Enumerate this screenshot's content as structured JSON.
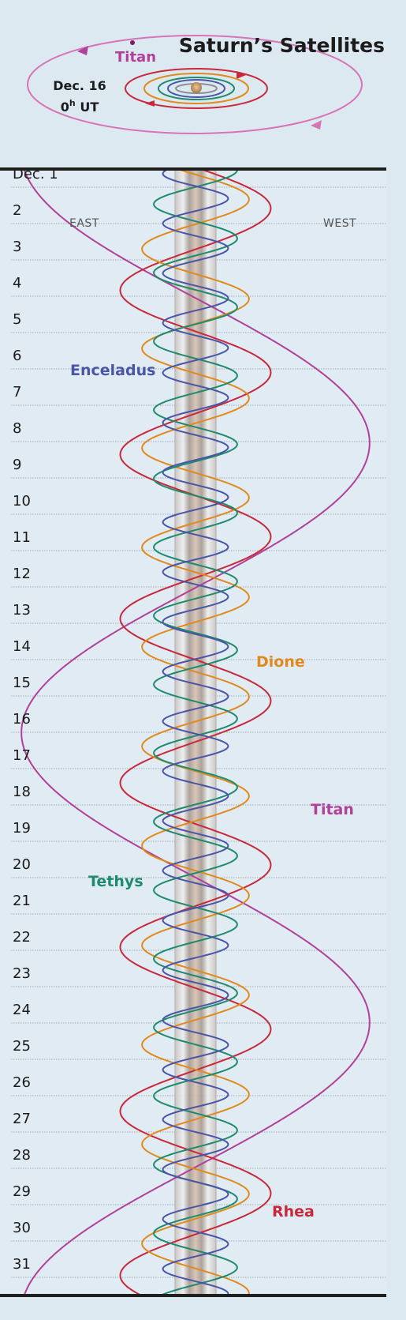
{
  "header": {
    "title": "Saturn’s Satellites",
    "orbit_label": "Titan",
    "date_line1": "Dec. 16",
    "date_line2_main": "0",
    "date_line2_sup": "h",
    "date_line2_rest": " UT"
  },
  "chart_data": {
    "type": "line",
    "x_axis_labels": {
      "east": "EAST",
      "west": "WEST"
    },
    "days": [
      "Dec. 1",
      "2",
      "3",
      "4",
      "5",
      "6",
      "7",
      "8",
      "9",
      "10",
      "11",
      "12",
      "13",
      "14",
      "15",
      "16",
      "17",
      "18",
      "19",
      "20",
      "21",
      "22",
      "23",
      "24",
      "25",
      "26",
      "27",
      "28",
      "29",
      "30",
      "31"
    ],
    "y_range_days": [
      1,
      32
    ],
    "series": [
      {
        "name": "Enceladus",
        "color": "#4a55a8",
        "period_days": 1.37,
        "amplitude": 0.18,
        "phase_days": 0.1
      },
      {
        "name": "Tethys",
        "color": "#1e8a6e",
        "period_days": 1.888,
        "amplitude": 0.23,
        "phase_days": 0.55
      },
      {
        "name": "Dione",
        "color": "#e08a1e",
        "period_days": 2.737,
        "amplitude": 0.295,
        "phase_days": 1.15
      },
      {
        "name": "Rhea",
        "color": "#c8283c",
        "period_days": 4.518,
        "amplitude": 0.415,
        "phase_days": 0.95
      },
      {
        "name": "Titan",
        "color": "#b0409a",
        "period_days": 15.945,
        "amplitude": 0.96,
        "phase_days": 4.55
      }
    ],
    "planet_body_color": "#c9b3a0"
  }
}
